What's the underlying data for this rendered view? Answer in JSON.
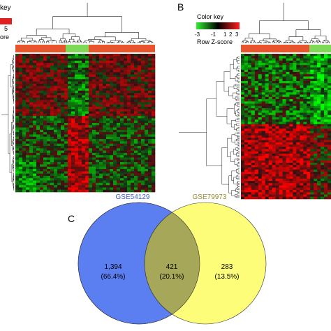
{
  "panel_a": {
    "color_key": {
      "title_fragment": "key",
      "tick_fragment": "5",
      "label_fragment": "ore"
    },
    "groups": [
      "red",
      "green",
      "red"
    ],
    "colors": {
      "red_bar": "#e8542c",
      "green_bar": "#7ed957",
      "heat_high": "#ff1a1a",
      "heat_low": "#33cc33",
      "heat_mid": "#000000"
    }
  },
  "panel_b": {
    "letter": "B",
    "color_key": {
      "title": "Color key",
      "ticks": [
        "-3",
        "-1",
        "1",
        "2",
        "3"
      ],
      "label": "Row Z-score"
    },
    "colors": {
      "red_bar": "#e8542c",
      "green_bar": "#7ed957"
    }
  },
  "panel_c": {
    "letter": "C",
    "left_set": {
      "name": "GSE54129",
      "name_color": "#3a5fcd",
      "fill": "#5b7ef0",
      "only_count": "1,394",
      "only_pct": "(66.4%)"
    },
    "right_set": {
      "name": "GSE79973",
      "name_color": "#9a8a2e",
      "fill": "#fdfd7a",
      "only_count": "283",
      "only_pct": "(13.5%)"
    },
    "overlap": {
      "count": "421",
      "pct": "(20.1%)",
      "fill": "#a6a759"
    }
  }
}
